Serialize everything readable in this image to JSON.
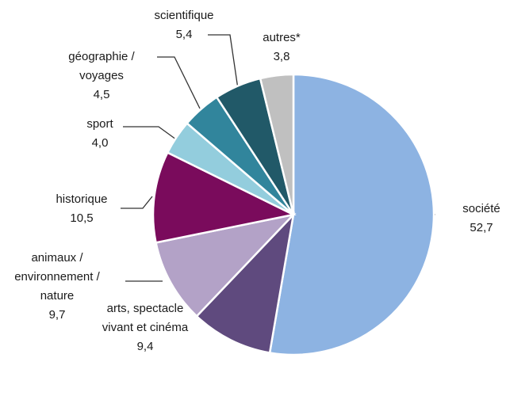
{
  "chart_data": {
    "type": "pie",
    "categories": [
      "société",
      "arts, spectacle vivant et cinéma",
      "animaux / environnement / nature",
      "historique",
      "sport",
      "géographie / voyages",
      "scientifique",
      "autres*"
    ],
    "values": [
      52.7,
      9.4,
      9.7,
      10.5,
      4.0,
      4.5,
      5.4,
      3.8
    ],
    "value_labels": [
      "52,7",
      "9,4",
      "9,7",
      "10,5",
      "4,0",
      "4,5",
      "5,4",
      "3,8"
    ],
    "colors": [
      "#8db3e2",
      "#5f4a7e",
      "#b3a2c7",
      "#7a0b5c",
      "#93cddd",
      "#31859c",
      "#215968",
      "#c0c0c0"
    ]
  }
}
